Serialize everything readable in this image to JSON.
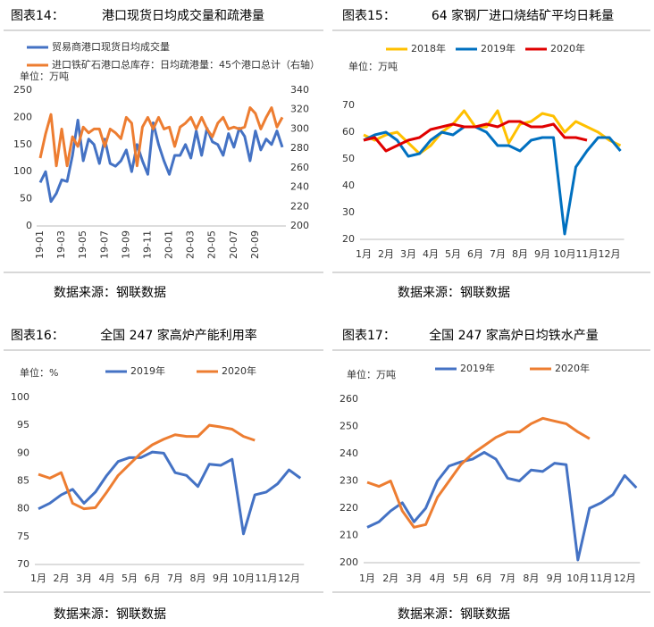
{
  "chart_data": [
    {
      "type": "line",
      "label": "图表14：",
      "title": "港口现货日均成交量和疏港量",
      "unit": "单位：万吨",
      "source": "数据来源：钢联数据",
      "categories": [
        "19-01",
        null,
        null,
        null,
        "19-03",
        null,
        null,
        null,
        "19-05",
        null,
        null,
        null,
        "19-07",
        null,
        null,
        null,
        "19-09",
        null,
        null,
        null,
        "19-11",
        null,
        null,
        null,
        "20-01",
        null,
        null,
        null,
        "20-03",
        null,
        null,
        null,
        "20-05",
        null,
        null,
        null,
        "20-07",
        null,
        null,
        null,
        "20-09",
        null,
        null,
        null,
        null,
        null
      ],
      "series": [
        {
          "name": "贸易商港口现货日均成交量",
          "color": "#4472c4",
          "values": [
            80,
            100,
            45,
            60,
            85,
            82,
            130,
            195,
            120,
            160,
            150,
            115,
            160,
            115,
            110,
            120,
            140,
            100,
            150,
            120,
            95,
            190,
            150,
            120,
            95,
            130,
            130,
            150,
            125,
            175,
            130,
            180,
            155,
            150,
            130,
            170,
            145,
            180,
            165,
            120,
            175,
            140,
            160,
            150,
            175,
            145
          ]
        },
        {
          "name": "进口铁矿石港口总库存：日均疏港量：45个港口总计（右轴）",
          "color": "#ed7d31",
          "axis": "y2",
          "values": [
            270,
            295,
            315,
            262,
            300,
            262,
            292,
            282,
            302,
            296,
            300,
            300,
            282,
            300,
            296,
            290,
            312,
            306,
            262,
            302,
            312,
            300,
            312,
            300,
            302,
            282,
            302,
            306,
            312,
            300,
            312,
            300,
            292,
            306,
            312,
            300,
            302,
            300,
            302,
            322,
            316,
            300,
            312,
            322,
            302,
            312
          ]
        }
      ],
      "ylim": [
        0,
        250
      ],
      "yticks": [
        0,
        50,
        100,
        150,
        200,
        250
      ],
      "y2lim": [
        200,
        340
      ],
      "y2ticks": [
        200,
        220,
        240,
        260,
        280,
        300,
        320,
        340
      ],
      "legend": "top-left"
    },
    {
      "type": "line",
      "label": "图表15：",
      "title": "64 家钢厂进口烧结矿平均日耗量",
      "unit": "单位：万吨",
      "source": "数据来源：钢联数据",
      "categories": [
        "1月",
        null,
        "2月",
        null,
        "3月",
        null,
        "4月",
        null,
        "5月",
        null,
        "6月",
        null,
        "7月",
        null,
        "8月",
        null,
        "9月",
        null,
        "10月",
        null,
        "11月",
        null,
        "12月",
        null
      ],
      "series": [
        {
          "name": "2018年",
          "color": "#ffc000",
          "values": [
            59,
            57,
            59,
            60,
            56,
            52,
            55,
            60,
            63,
            68,
            62,
            62,
            68,
            56,
            63,
            64,
            67,
            66,
            60,
            64,
            62,
            60,
            57,
            55
          ]
        },
        {
          "name": "2019年",
          "color": "#0070c0",
          "values": [
            57,
            59,
            60,
            57,
            51,
            52,
            57,
            60,
            59,
            62,
            62,
            60,
            55,
            55,
            53,
            57,
            58,
            58,
            22,
            47,
            53,
            58,
            58,
            53
          ]
        },
        {
          "name": "2020年",
          "color": "#e00000",
          "values": [
            57,
            58,
            53,
            55,
            57,
            58,
            61,
            62,
            63,
            62,
            62,
            63,
            62,
            64,
            64,
            62,
            62,
            63,
            58,
            58,
            57,
            null,
            null,
            null
          ]
        }
      ],
      "ylim": [
        20,
        70
      ],
      "yticks": [
        20,
        30,
        40,
        50,
        60,
        70
      ],
      "legend": "top"
    },
    {
      "type": "line",
      "label": "图表16：",
      "title": "全国 247 家高炉产能利用率",
      "unit": "单位：%",
      "source": "数据来源：钢联数据",
      "categories": [
        "1月",
        null,
        "2月",
        null,
        "3月",
        null,
        "4月",
        null,
        "5月",
        null,
        "6月",
        null,
        "7月",
        null,
        "8月",
        null,
        "9月",
        null,
        "10月",
        null,
        "11月",
        null,
        "12月",
        null
      ],
      "series": [
        {
          "name": "2019年",
          "color": "#4472c4",
          "values": [
            80,
            81,
            82.5,
            83.5,
            81,
            83,
            86,
            88.5,
            89.2,
            89.2,
            90.2,
            90,
            86.5,
            86,
            84,
            88,
            87.8,
            88.9,
            75.5,
            82.5,
            83,
            84.5,
            87,
            85.5
          ]
        },
        {
          "name": "2020年",
          "color": "#ed7d31",
          "values": [
            86.2,
            85.5,
            86.5,
            81,
            80,
            80.2,
            83,
            86,
            88,
            90,
            91.5,
            92.5,
            93.3,
            93,
            93,
            95,
            94.7,
            94.3,
            93,
            92.3,
            null,
            null,
            null,
            null
          ]
        }
      ],
      "ylim": [
        70,
        100
      ],
      "yticks": [
        70,
        75,
        80,
        85,
        90,
        95,
        100
      ],
      "legend": "top"
    },
    {
      "type": "line",
      "label": "图表17：",
      "title": "全国 247 家高炉日均铁水产量",
      "unit": "单位：万吨",
      "source": "数据来源：钢联数据",
      "categories": [
        "1月",
        null,
        "2月",
        null,
        "3月",
        null,
        "4月",
        null,
        "5月",
        null,
        "6月",
        null,
        "7月",
        null,
        "8月",
        null,
        "9月",
        null,
        "10月",
        null,
        "11月",
        null,
        "12月",
        null
      ],
      "series": [
        {
          "name": "2019年",
          "color": "#4472c4",
          "values": [
            213,
            215,
            219,
            222,
            215,
            220,
            230,
            235.5,
            237,
            238,
            240.5,
            238,
            231,
            230,
            234,
            233.5,
            236.5,
            236,
            201,
            220,
            222,
            225,
            232,
            227.5
          ]
        },
        {
          "name": "2020年",
          "color": "#ed7d31",
          "values": [
            229.5,
            228,
            230,
            219,
            213,
            214,
            224,
            230,
            236,
            240,
            243,
            246,
            248,
            248,
            251,
            253,
            252,
            251,
            248,
            245.5,
            null,
            null,
            null,
            null
          ]
        }
      ],
      "ylim": [
        200,
        260
      ],
      "yticks": [
        200,
        210,
        220,
        230,
        240,
        250,
        260
      ],
      "legend": "top"
    }
  ]
}
